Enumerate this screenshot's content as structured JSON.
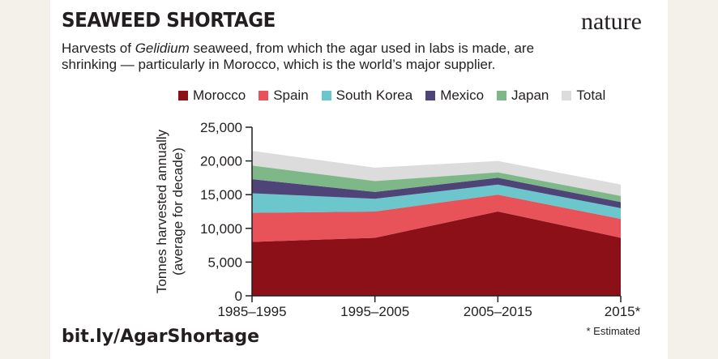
{
  "header": {
    "title": "SEAWEED SHORTAGE",
    "brand": "nature",
    "subtitle_pre": "Harvests of ",
    "subtitle_em": "Gelidium",
    "subtitle_post": " seaweed, from which the agar used in labs is made, are shrinking — particularly in Morocco, which is the world’s major supplier."
  },
  "footer": {
    "link": "bit.ly/AgarShortage",
    "footnote": "* Estimated"
  },
  "colors": {
    "Morocco": "#8b1018",
    "Spain": "#e8535a",
    "South Korea": "#6cc7cc",
    "Mexico": "#4f4478",
    "Japan": "#7eb888",
    "Total": "#dcdcdc"
  },
  "chart_data": {
    "type": "area",
    "stacked": true,
    "categories": [
      "1985–1995",
      "1995–2005",
      "2005–2015",
      "2015*"
    ],
    "ylabel_line1": "Tonnes harvested annually",
    "ylabel_line2": "(average for decade)",
    "ylim": [
      0,
      25000
    ],
    "yticks": [
      "0",
      "5,000",
      "10,000",
      "15,000",
      "20,000",
      "25,000"
    ],
    "ytick_values": [
      0,
      5000,
      10000,
      15000,
      20000,
      25000
    ],
    "legend": [
      "Morocco",
      "Spain",
      "South Korea",
      "Mexico",
      "Japan",
      "Total"
    ],
    "legend_position": "top",
    "grid": false,
    "series": [
      {
        "name": "Morocco",
        "values": [
          8000,
          8600,
          12500,
          8600
        ]
      },
      {
        "name": "Spain",
        "values": [
          4300,
          3900,
          2500,
          2800
        ]
      },
      {
        "name": "South Korea",
        "values": [
          2900,
          1900,
          1500,
          1600
        ]
      },
      {
        "name": "Mexico",
        "values": [
          2100,
          1000,
          1000,
          900
        ]
      },
      {
        "name": "Japan",
        "values": [
          2000,
          1600,
          800,
          900
        ]
      },
      {
        "name": "Total",
        "values": [
          21500,
          19000,
          20000,
          16500
        ]
      }
    ]
  }
}
